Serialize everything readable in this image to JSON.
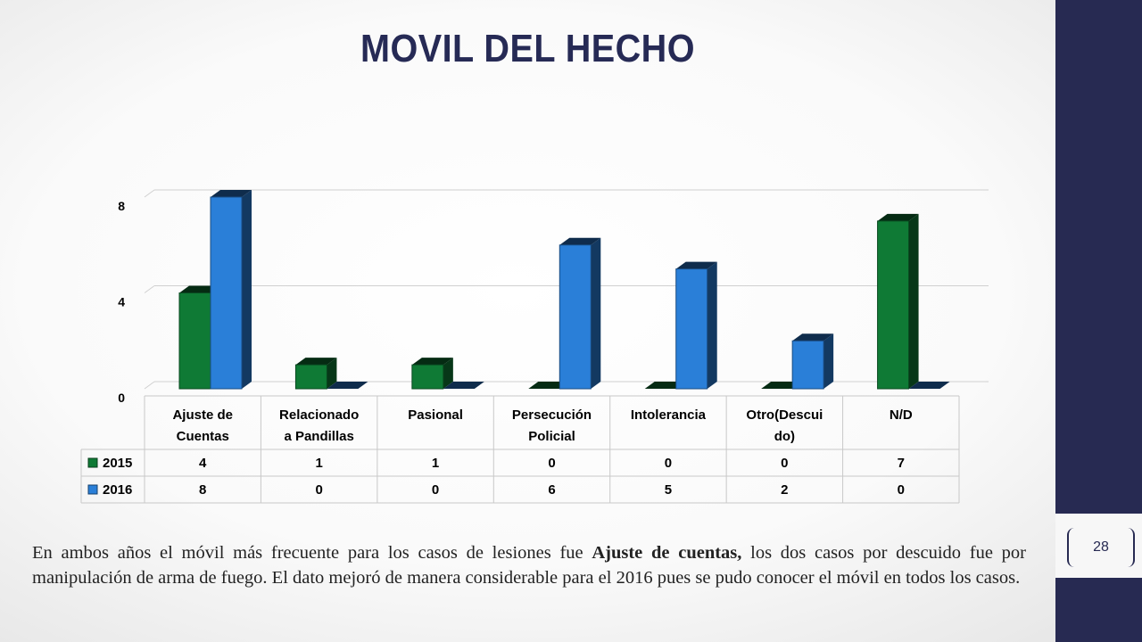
{
  "slide": {
    "title": "MOVIL DEL HECHO",
    "page_number": "28",
    "caption": {
      "part1": "En ambos años el móvil más frecuente para los casos de lesiones fue ",
      "bold": "Ajuste de cuentas,",
      "part2": " los dos casos por descuido fue por manipulación de arma de fuego. El dato mejoró de manera considerable para el 2016 pues se pudo conocer el móvil en todos los casos."
    }
  },
  "colors": {
    "series_2015": "#0f7a35",
    "series_2016": "#2a7fd8",
    "sidebar": "#272a52",
    "title": "#262a55"
  },
  "chart_data": {
    "type": "bar",
    "categories": [
      [
        "Ajuste de",
        "Cuentas"
      ],
      [
        "Relacionado",
        "a Pandillas"
      ],
      [
        "Pasional"
      ],
      [
        "Persecución",
        "Policial"
      ],
      [
        "Intolerancia"
      ],
      [
        "Otro(Descui",
        "do)"
      ],
      [
        "N/D"
      ]
    ],
    "series": [
      {
        "name": "2015",
        "values": [
          4,
          1,
          1,
          0,
          0,
          0,
          7
        ]
      },
      {
        "name": "2016",
        "values": [
          8,
          0,
          0,
          6,
          5,
          2,
          0
        ]
      }
    ],
    "y_ticks": [
      "0",
      "4",
      "8"
    ],
    "ylim": [
      0,
      8
    ],
    "grid": true,
    "legend": "data table"
  }
}
